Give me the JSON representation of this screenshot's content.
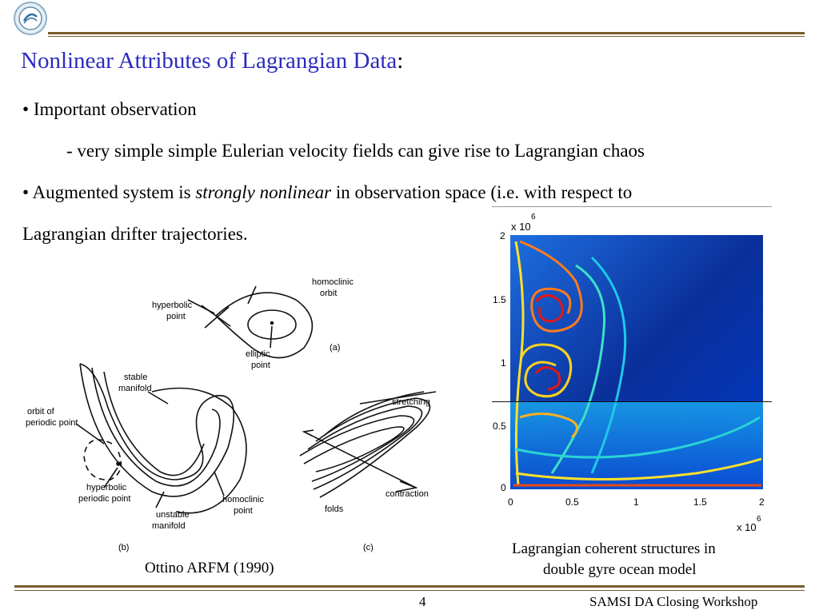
{
  "slide": {
    "title": "Nonlinear Attributes of Lagrangian Data",
    "title_colon": ":",
    "bullets": [
      {
        "marker": "•",
        "text": "Important observation"
      },
      {
        "text": "- very simple simple Eulerian velocity fields can give rise to Lagrangian chaos"
      },
      {
        "marker": "•",
        "prefix": "Augmented system is ",
        "emphasis": "strongly nonlinear",
        "suffix": " in observation space (i.e. with respect to"
      },
      {
        "text": "Lagrangian drifter trajectories."
      }
    ]
  },
  "left_figure": {
    "caption": "Ottino ARFM (1990)",
    "labels": {
      "homoclinic_orbit_1": "homoclinic",
      "homoclinic_orbit_2": "orbit",
      "hyperbolic_point_1": "hyperbolic",
      "hyperbolic_point_2": "point",
      "elliptic_point_1": "elliptic",
      "elliptic_point_2": "point",
      "panel_a": "(a)",
      "stable_manifold_1": "stable",
      "stable_manifold_2": "manifold",
      "orbit_periodic_1": "orbit of",
      "orbit_periodic_2": "periodic point",
      "hyperbolic_periodic_1": "hyperbolic",
      "hyperbolic_periodic_2": "periodic point",
      "unstable_manifold_1": "unstable",
      "unstable_manifold_2": "manifold",
      "homoclinic_point_1": "homoclinic",
      "homoclinic_point_2": "point",
      "panel_b": "(b)",
      "stretching": "stretching",
      "contraction": "contraction",
      "folds": "folds",
      "panel_c": "(c)"
    }
  },
  "right_figure": {
    "caption_line1": "Lagrangian coherent structures in",
    "caption_line2": "double gyre ocean model",
    "y_exponent_base": "x 10",
    "y_exponent_power": "6",
    "x_exponent_base": "x 10",
    "x_exponent_power": "6",
    "y_ticks": [
      "2",
      "1.5",
      "1",
      "0.5",
      "0"
    ],
    "x_ticks": [
      "0",
      "0.5",
      "1",
      "1.5",
      "2"
    ]
  },
  "footer": {
    "page_number": "4",
    "workshop": "SAMSI DA Closing Workshop"
  },
  "colors": {
    "title": "#2b2bbd",
    "rule": "#7a5c2e"
  }
}
